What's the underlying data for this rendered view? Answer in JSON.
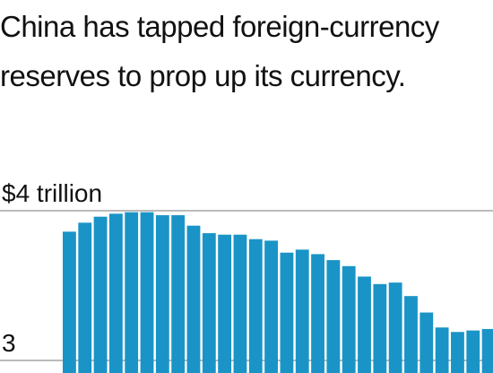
{
  "chart_data": {
    "type": "bar",
    "title": "China has tapped foreign-currency reserves to prop up its currency.",
    "categories": [
      null,
      null,
      null,
      null,
      null,
      null,
      null,
      null,
      null,
      null,
      null,
      null,
      null,
      null,
      null,
      null,
      null,
      null,
      null,
      null,
      null,
      null,
      null,
      null,
      null,
      null,
      null,
      null
    ],
    "values": [
      3.86,
      3.92,
      3.96,
      3.98,
      3.99,
      3.99,
      3.97,
      3.97,
      3.9,
      3.85,
      3.84,
      3.84,
      3.81,
      3.8,
      3.72,
      3.74,
      3.71,
      3.67,
      3.63,
      3.56,
      3.51,
      3.52,
      3.43,
      3.32,
      3.22,
      3.19,
      3.2,
      3.21
    ],
    "color": "#1a94c6",
    "ylim": [
      2.916,
      4
    ],
    "yticks": [
      3,
      {
        "value": 4,
        "label": "$4 trillion"
      }
    ],
    "grid": true
  }
}
